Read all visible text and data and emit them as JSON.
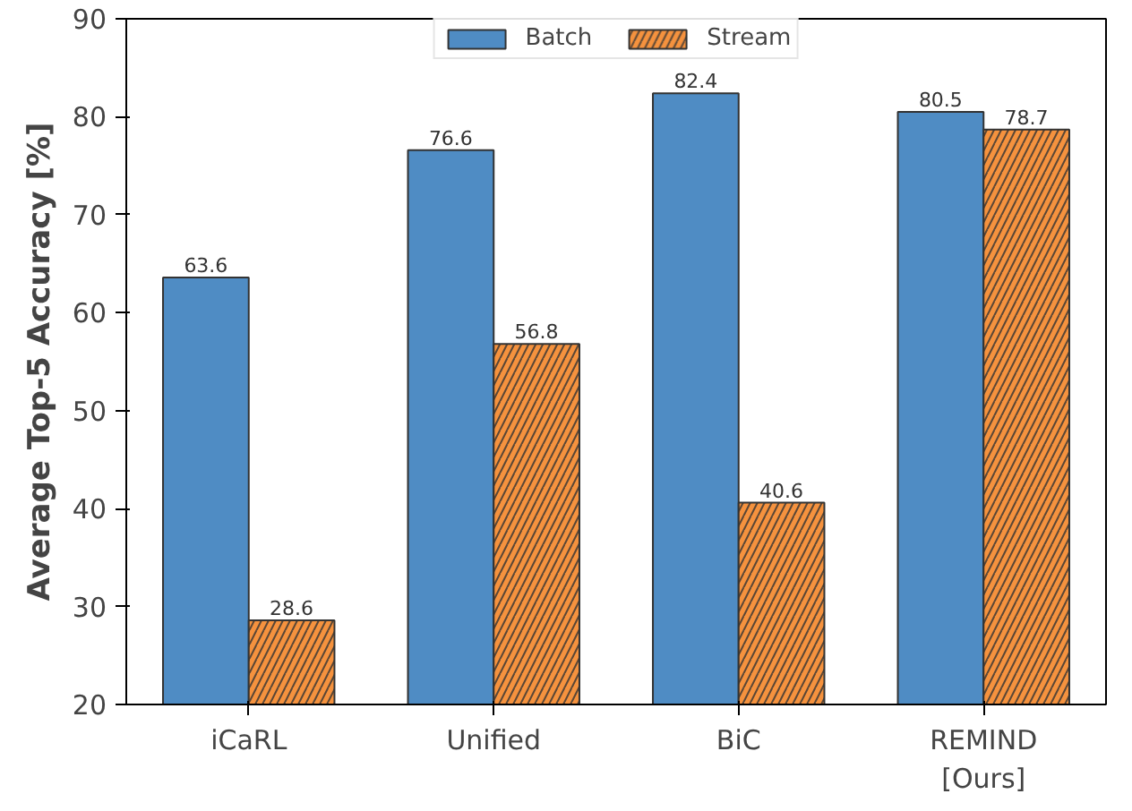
{
  "chart_data": {
    "type": "bar",
    "ylabel": "Average Top-5 Accuracy [%]",
    "categories": [
      "iCaRL",
      "Unified",
      "BiC",
      "REMIND\n[Ours]"
    ],
    "series": [
      {
        "name": "Batch",
        "color": "#4f8cc4",
        "values": [
          63.6,
          76.6,
          82.4,
          80.5
        ]
      },
      {
        "name": "Stream",
        "color": "#f5923e",
        "values": [
          28.6,
          56.8,
          40.6,
          78.7
        ]
      }
    ],
    "ylim": [
      20,
      90
    ],
    "yticks": [
      20,
      30,
      40,
      50,
      60,
      70,
      80,
      90
    ],
    "data_labels": true,
    "legend": "top",
    "grid": false
  }
}
